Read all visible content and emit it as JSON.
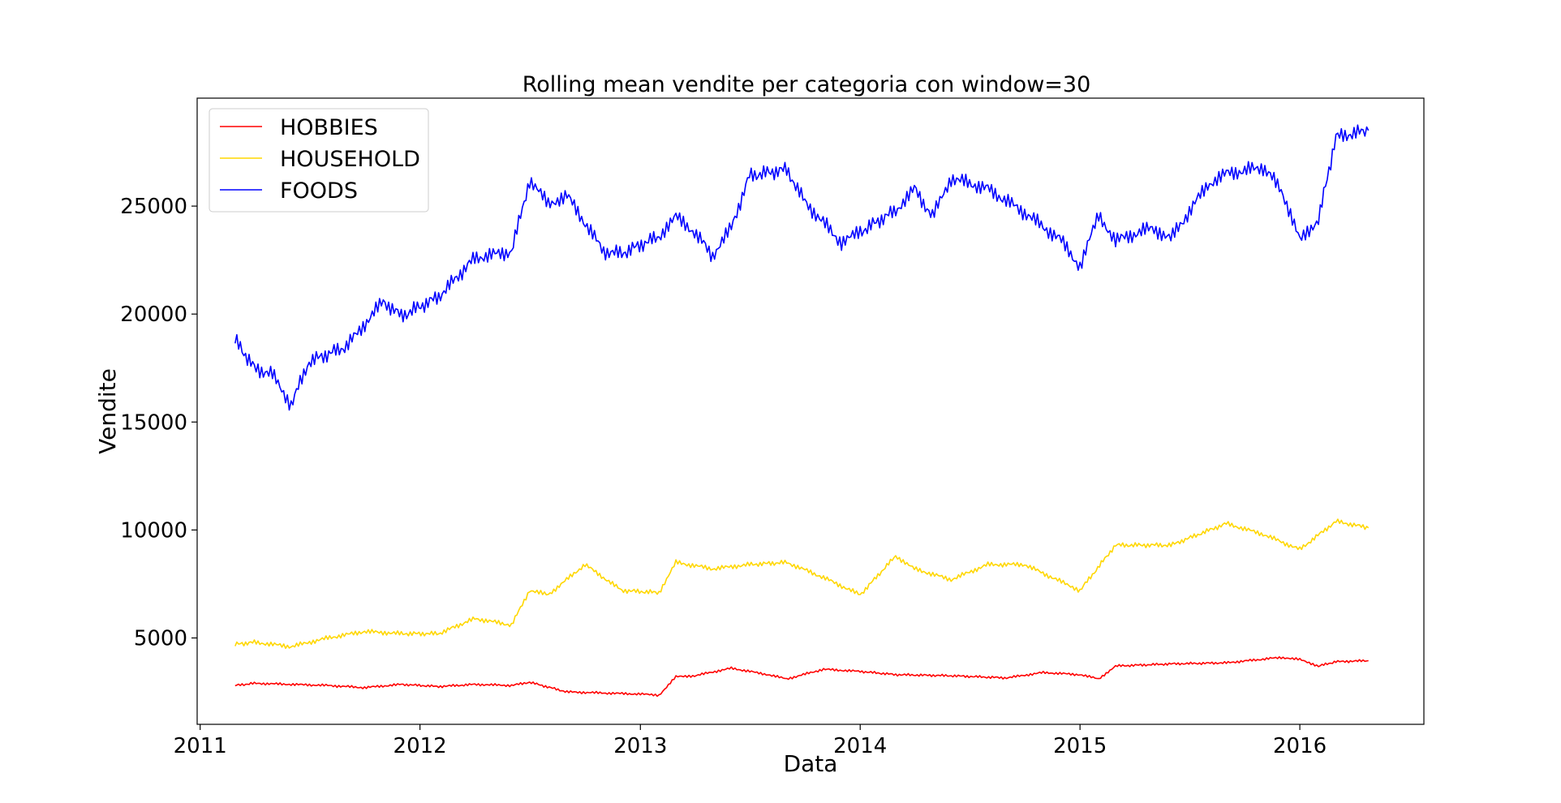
{
  "chart_data": {
    "type": "line",
    "title": "Rolling mean vendite per categoria con window=30",
    "xlabel": "Data",
    "ylabel": "Vendite",
    "x_ticks": [
      "2011",
      "2012",
      "2013",
      "2014",
      "2015",
      "2016"
    ],
    "y_ticks": [
      5000,
      10000,
      15000,
      20000,
      25000
    ],
    "xlim": [
      "2010-12-27",
      "2016-07-25"
    ],
    "ylim": [
      1000,
      30000
    ],
    "grid": false,
    "legend_position": "top-left",
    "series": [
      {
        "name": "HOBBIES",
        "color": "#ff0000",
        "x": [
          "2011-02-28",
          "2011-04-01",
          "2011-06-01",
          "2011-08-01",
          "2011-10-01",
          "2011-12-01",
          "2012-02-01",
          "2012-04-01",
          "2012-06-01",
          "2012-07-01",
          "2012-09-01",
          "2012-11-01",
          "2013-01-01",
          "2013-02-01",
          "2013-03-01",
          "2013-04-01",
          "2013-06-01",
          "2013-08-01",
          "2013-09-01",
          "2013-11-01",
          "2014-01-01",
          "2014-03-01",
          "2014-06-01",
          "2014-09-01",
          "2014-11-01",
          "2015-01-01",
          "2015-02-01",
          "2015-03-01",
          "2015-06-01",
          "2015-09-01",
          "2015-12-01",
          "2016-01-01",
          "2016-02-01",
          "2016-03-01",
          "2016-04-24"
        ],
        "values": [
          2800,
          2900,
          2850,
          2800,
          2700,
          2850,
          2750,
          2850,
          2800,
          2950,
          2500,
          2450,
          2400,
          2350,
          3200,
          3250,
          3600,
          3300,
          3100,
          3550,
          3450,
          3300,
          3250,
          3150,
          3400,
          3300,
          3100,
          3700,
          3800,
          3850,
          4100,
          4000,
          3700,
          3900,
          3950
        ]
      },
      {
        "name": "HOUSEHOLD",
        "color": "#ffd700",
        "x": [
          "2011-02-28",
          "2011-04-01",
          "2011-06-01",
          "2011-08-01",
          "2011-10-01",
          "2011-12-01",
          "2012-02-01",
          "2012-04-01",
          "2012-06-01",
          "2012-07-01",
          "2012-08-01",
          "2012-10-01",
          "2012-12-01",
          "2013-02-01",
          "2013-03-01",
          "2013-05-01",
          "2013-07-01",
          "2013-09-01",
          "2013-11-01",
          "2014-01-01",
          "2014-03-01",
          "2014-04-01",
          "2014-06-01",
          "2014-08-01",
          "2014-10-01",
          "2014-12-01",
          "2015-01-01",
          "2015-03-01",
          "2015-06-01",
          "2015-09-01",
          "2015-11-01",
          "2016-01-01",
          "2016-03-01",
          "2016-04-24"
        ],
        "values": [
          4700,
          4800,
          4600,
          5000,
          5300,
          5200,
          5200,
          5900,
          5600,
          7200,
          7000,
          8400,
          7200,
          7100,
          8500,
          8200,
          8400,
          8500,
          7800,
          7000,
          8800,
          8200,
          7700,
          8400,
          8400,
          7600,
          7200,
          9300,
          9300,
          10300,
          9800,
          9100,
          10400,
          10100
        ]
      },
      {
        "name": "FOODS",
        "color": "#0000ff",
        "x": [
          "2011-02-28",
          "2011-04-01",
          "2011-05-01",
          "2011-06-01",
          "2011-07-01",
          "2011-09-01",
          "2011-11-01",
          "2011-12-01",
          "2012-02-01",
          "2012-04-01",
          "2012-06-01",
          "2012-07-01",
          "2012-08-01",
          "2012-09-01",
          "2012-11-01",
          "2012-12-01",
          "2013-02-01",
          "2013-03-01",
          "2013-04-01",
          "2013-05-01",
          "2013-06-01",
          "2013-07-01",
          "2013-09-01",
          "2013-10-01",
          "2013-12-01",
          "2014-01-01",
          "2014-03-01",
          "2014-04-01",
          "2014-05-01",
          "2014-06-01",
          "2014-08-01",
          "2014-10-01",
          "2014-12-01",
          "2015-01-01",
          "2015-02-01",
          "2015-03-01",
          "2015-05-01",
          "2015-06-01",
          "2015-08-01",
          "2015-09-01",
          "2015-11-01",
          "2015-12-01",
          "2016-01-01",
          "2016-02-01",
          "2016-03-01",
          "2016-04-24"
        ],
        "values": [
          18800,
          17500,
          17200,
          15800,
          17800,
          18500,
          20600,
          19900,
          20800,
          22600,
          22900,
          26200,
          25100,
          25500,
          22900,
          22800,
          23600,
          24500,
          23800,
          22700,
          24000,
          26400,
          26700,
          25200,
          23300,
          23800,
          24800,
          25800,
          24500,
          26300,
          25800,
          24700,
          23400,
          22200,
          24600,
          23400,
          24000,
          23500,
          26000,
          26500,
          26800,
          25800,
          23400,
          24400,
          28200,
          28500
        ]
      }
    ]
  }
}
